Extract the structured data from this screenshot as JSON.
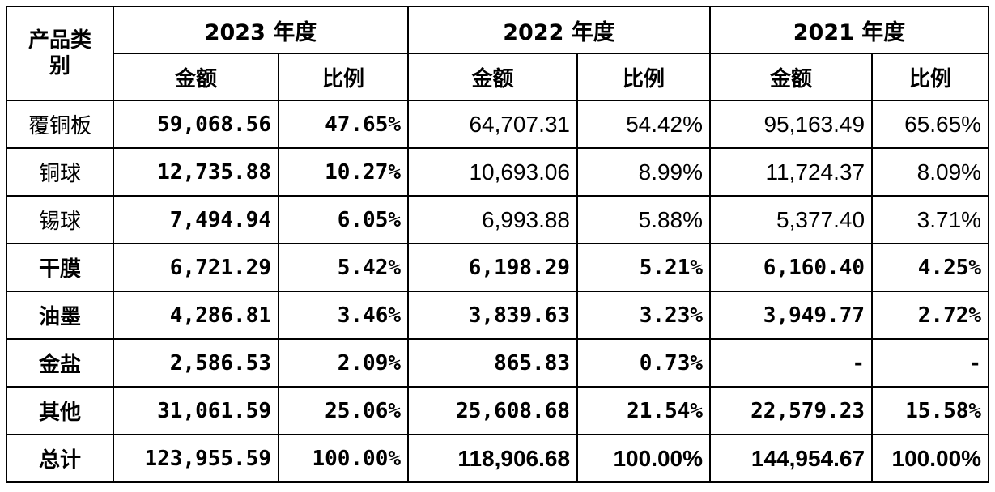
{
  "header": {
    "category": "产品类别",
    "years": [
      "2023 年度",
      "2022 年度",
      "2021 年度"
    ],
    "amount": "金额",
    "ratio": "比例"
  },
  "rows": [
    {
      "category": "覆铜板",
      "v": [
        "59,068.56",
        "47.65%",
        "64,707.31",
        "54.42%",
        "95,163.49",
        "65.65%"
      ]
    },
    {
      "category": "铜球",
      "v": [
        "12,735.88",
        "10.27%",
        "10,693.06",
        "8.99%",
        "11,724.37",
        "8.09%"
      ]
    },
    {
      "category": "锡球",
      "v": [
        "7,494.94",
        "6.05%",
        "6,993.88",
        "5.88%",
        "5,377.40",
        "3.71%"
      ]
    },
    {
      "category": "干膜",
      "v": [
        "6,721.29",
        "5.42%",
        "6,198.29",
        "5.21%",
        "6,160.40",
        "4.25%"
      ]
    },
    {
      "category": "油墨",
      "v": [
        "4,286.81",
        "3.46%",
        "3,839.63",
        "3.23%",
        "3,949.77",
        "2.72%"
      ]
    },
    {
      "category": "金盐",
      "v": [
        "2,586.53",
        "2.09%",
        "865.83",
        "0.73%",
        "-",
        "-"
      ]
    },
    {
      "category": "其他",
      "v": [
        "31,061.59",
        "25.06%",
        "25,608.68",
        "21.54%",
        "22,579.23",
        "15.58%"
      ]
    },
    {
      "category": "总计",
      "v": [
        "123,955.59",
        "100.00%",
        "118,906.68",
        "100.00%",
        "144,954.67",
        "100.00%"
      ]
    }
  ]
}
